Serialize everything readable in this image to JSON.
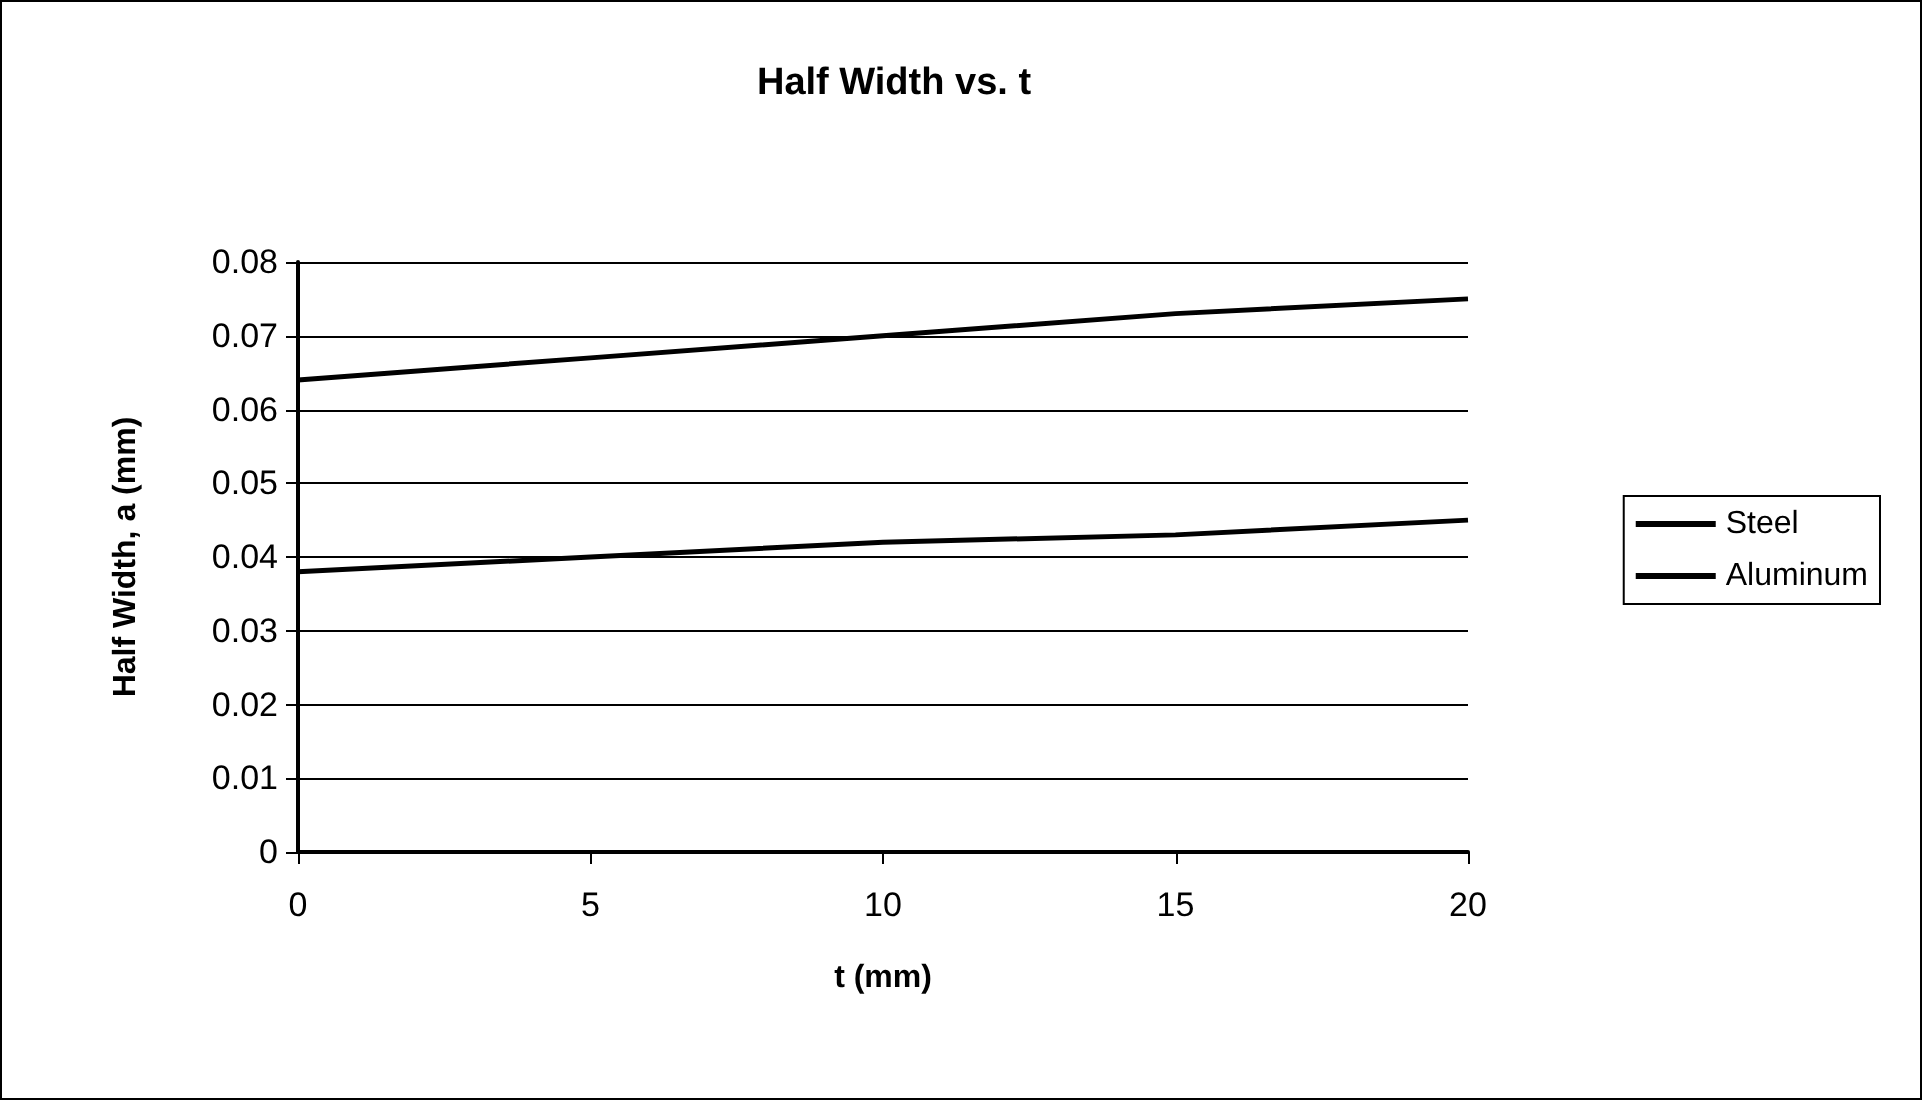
{
  "chart_data": {
    "type": "line",
    "title": "Half Width vs. t",
    "xlabel": "t (mm)",
    "ylabel": "Half Width, a (mm)",
    "x": [
      0,
      5,
      10,
      15,
      20
    ],
    "series": [
      {
        "name": "Steel",
        "color": "#000000",
        "values": [
          0.038,
          0.04,
          0.042,
          0.043,
          0.045
        ]
      },
      {
        "name": "Aluminum",
        "color": "#000000",
        "values": [
          0.064,
          0.067,
          0.07,
          0.073,
          0.075
        ]
      }
    ],
    "xlim": [
      0,
      20
    ],
    "xticks": [
      0,
      5,
      10,
      15,
      20
    ],
    "ylim": [
      0,
      0.08
    ],
    "yticks": [
      0,
      0.01,
      0.02,
      0.03,
      0.04,
      0.05,
      0.06,
      0.07,
      0.08
    ],
    "grid": "y",
    "legend": "right",
    "marker": "none",
    "line_style": "solid"
  }
}
